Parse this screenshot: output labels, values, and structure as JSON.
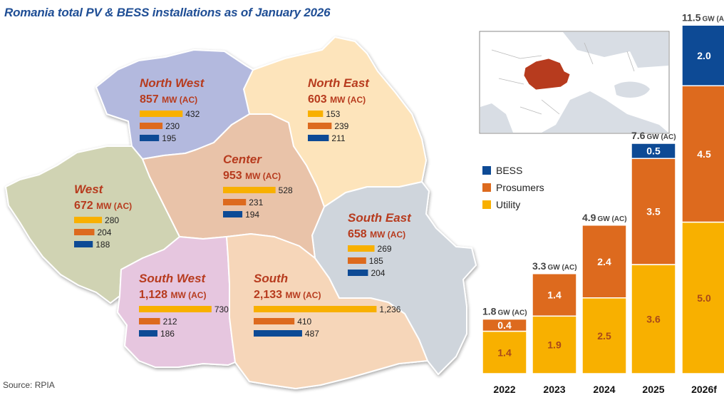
{
  "title": "Romania total PV & BESS installations as of January 2026",
  "source": "Source: RPIA",
  "colors": {
    "utility": "#f8b000",
    "prosumers": "#dd6a1e",
    "bess": "#0d4a95",
    "region_name": "#b73b1e"
  },
  "map": {
    "regions": [
      {
        "name": "North West",
        "total": "857",
        "unit": "MW (AC)",
        "fill": "#b3b9de",
        "values": [
          {
            "label": "432",
            "value": 432
          },
          {
            "label": "230",
            "value": 230
          },
          {
            "label": "195",
            "value": 195
          }
        ]
      },
      {
        "name": "North East",
        "total": "603",
        "unit": "MW (AC)",
        "fill": "#fde4bb",
        "values": [
          {
            "label": "153",
            "value": 153
          },
          {
            "label": "239",
            "value": 239
          },
          {
            "label": "211",
            "value": 211
          }
        ]
      },
      {
        "name": "Center",
        "total": "953",
        "unit": "MW (AC)",
        "fill": "#e9c3a9",
        "values": [
          {
            "label": "528",
            "value": 528
          },
          {
            "label": "231",
            "value": 231
          },
          {
            "label": "194",
            "value": 194
          }
        ]
      },
      {
        "name": "West",
        "total": "672",
        "unit": "MW (AC)",
        "fill": "#d0d3b3",
        "values": [
          {
            "label": "280",
            "value": 280
          },
          {
            "label": "204",
            "value": 204
          },
          {
            "label": "188",
            "value": 188
          }
        ]
      },
      {
        "name": "South East",
        "total": "658",
        "unit": "MW (AC)",
        "fill": "#cfd5dc",
        "values": [
          {
            "label": "269",
            "value": 269
          },
          {
            "label": "185",
            "value": 185
          },
          {
            "label": "204",
            "value": 204
          }
        ]
      },
      {
        "name": "South West",
        "total": "1,128",
        "unit": "MW (AC)",
        "fill": "#e6c6df",
        "values": [
          {
            "label": "730",
            "value": 730
          },
          {
            "label": "212",
            "value": 212
          },
          {
            "label": "186",
            "value": 186
          }
        ]
      },
      {
        "name": "South",
        "total": "2,133",
        "unit": "MW (AC)",
        "fill": "#f6d6b9",
        "values": [
          {
            "label": "1,236",
            "value": 1236
          },
          {
            "label": "410",
            "value": 410
          },
          {
            "label": "487",
            "value": 487
          }
        ]
      }
    ]
  },
  "chart_data": {
    "type": "bar",
    "stacked": true,
    "categories": [
      "2022",
      "2023",
      "2024",
      "2025",
      "2026f"
    ],
    "series": [
      {
        "name": "Utility",
        "values": [
          1.4,
          1.9,
          2.5,
          3.6,
          5.0
        ],
        "labels": [
          "1.4",
          "1.9",
          "2.5",
          "3.6",
          "5.0"
        ]
      },
      {
        "name": "Prosumers",
        "values": [
          0.4,
          1.4,
          2.4,
          3.5,
          4.5
        ],
        "labels": [
          "0.4",
          "1.4",
          "2.4",
          "3.5",
          "4.5"
        ]
      },
      {
        "name": "BESS",
        "values": [
          0,
          0,
          0,
          0.5,
          2.0
        ],
        "labels": [
          "",
          "",
          "",
          "0.5",
          "2.0"
        ]
      }
    ],
    "totals": [
      "1.8",
      "3.3",
      "4.9",
      "7.6",
      "11.5"
    ],
    "total_unit": "GW (AC)",
    "legend": [
      "BESS",
      "Prosumers",
      "Utility"
    ],
    "legend_position": "left of bars"
  }
}
